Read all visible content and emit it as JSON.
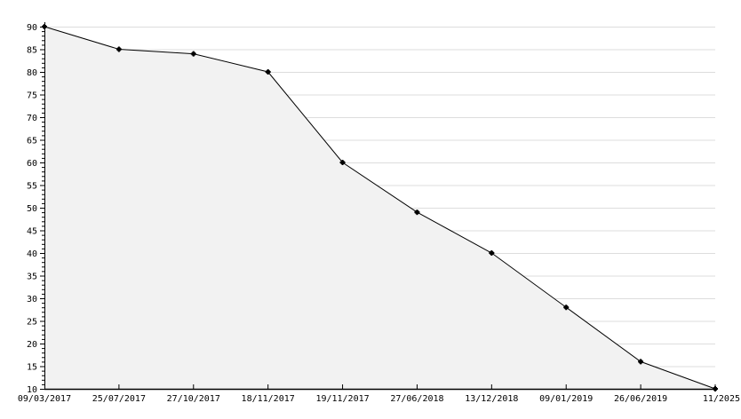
{
  "chart_data": {
    "type": "area",
    "title": "",
    "xlabel": "",
    "ylabel": "",
    "categories": [
      "09/03/2017",
      "25/07/2017",
      "27/10/2017",
      "18/11/2017",
      "19/11/2017",
      "27/06/2018",
      "13/12/2018",
      "09/01/2019",
      "26/06/2019",
      "11/2025"
    ],
    "values": [
      90,
      85,
      84,
      80,
      60,
      49,
      40,
      28,
      16,
      10
    ],
    "ylim": [
      10,
      90
    ],
    "yticks": [
      10,
      15,
      20,
      25,
      30,
      35,
      40,
      45,
      50,
      55,
      60,
      65,
      70,
      75,
      80,
      85,
      90
    ],
    "grid": true,
    "legend": "none",
    "colors": {
      "fill": "#f2f2f2",
      "line": "#000000",
      "grid": "#dddddd",
      "marker": "#000000"
    }
  }
}
